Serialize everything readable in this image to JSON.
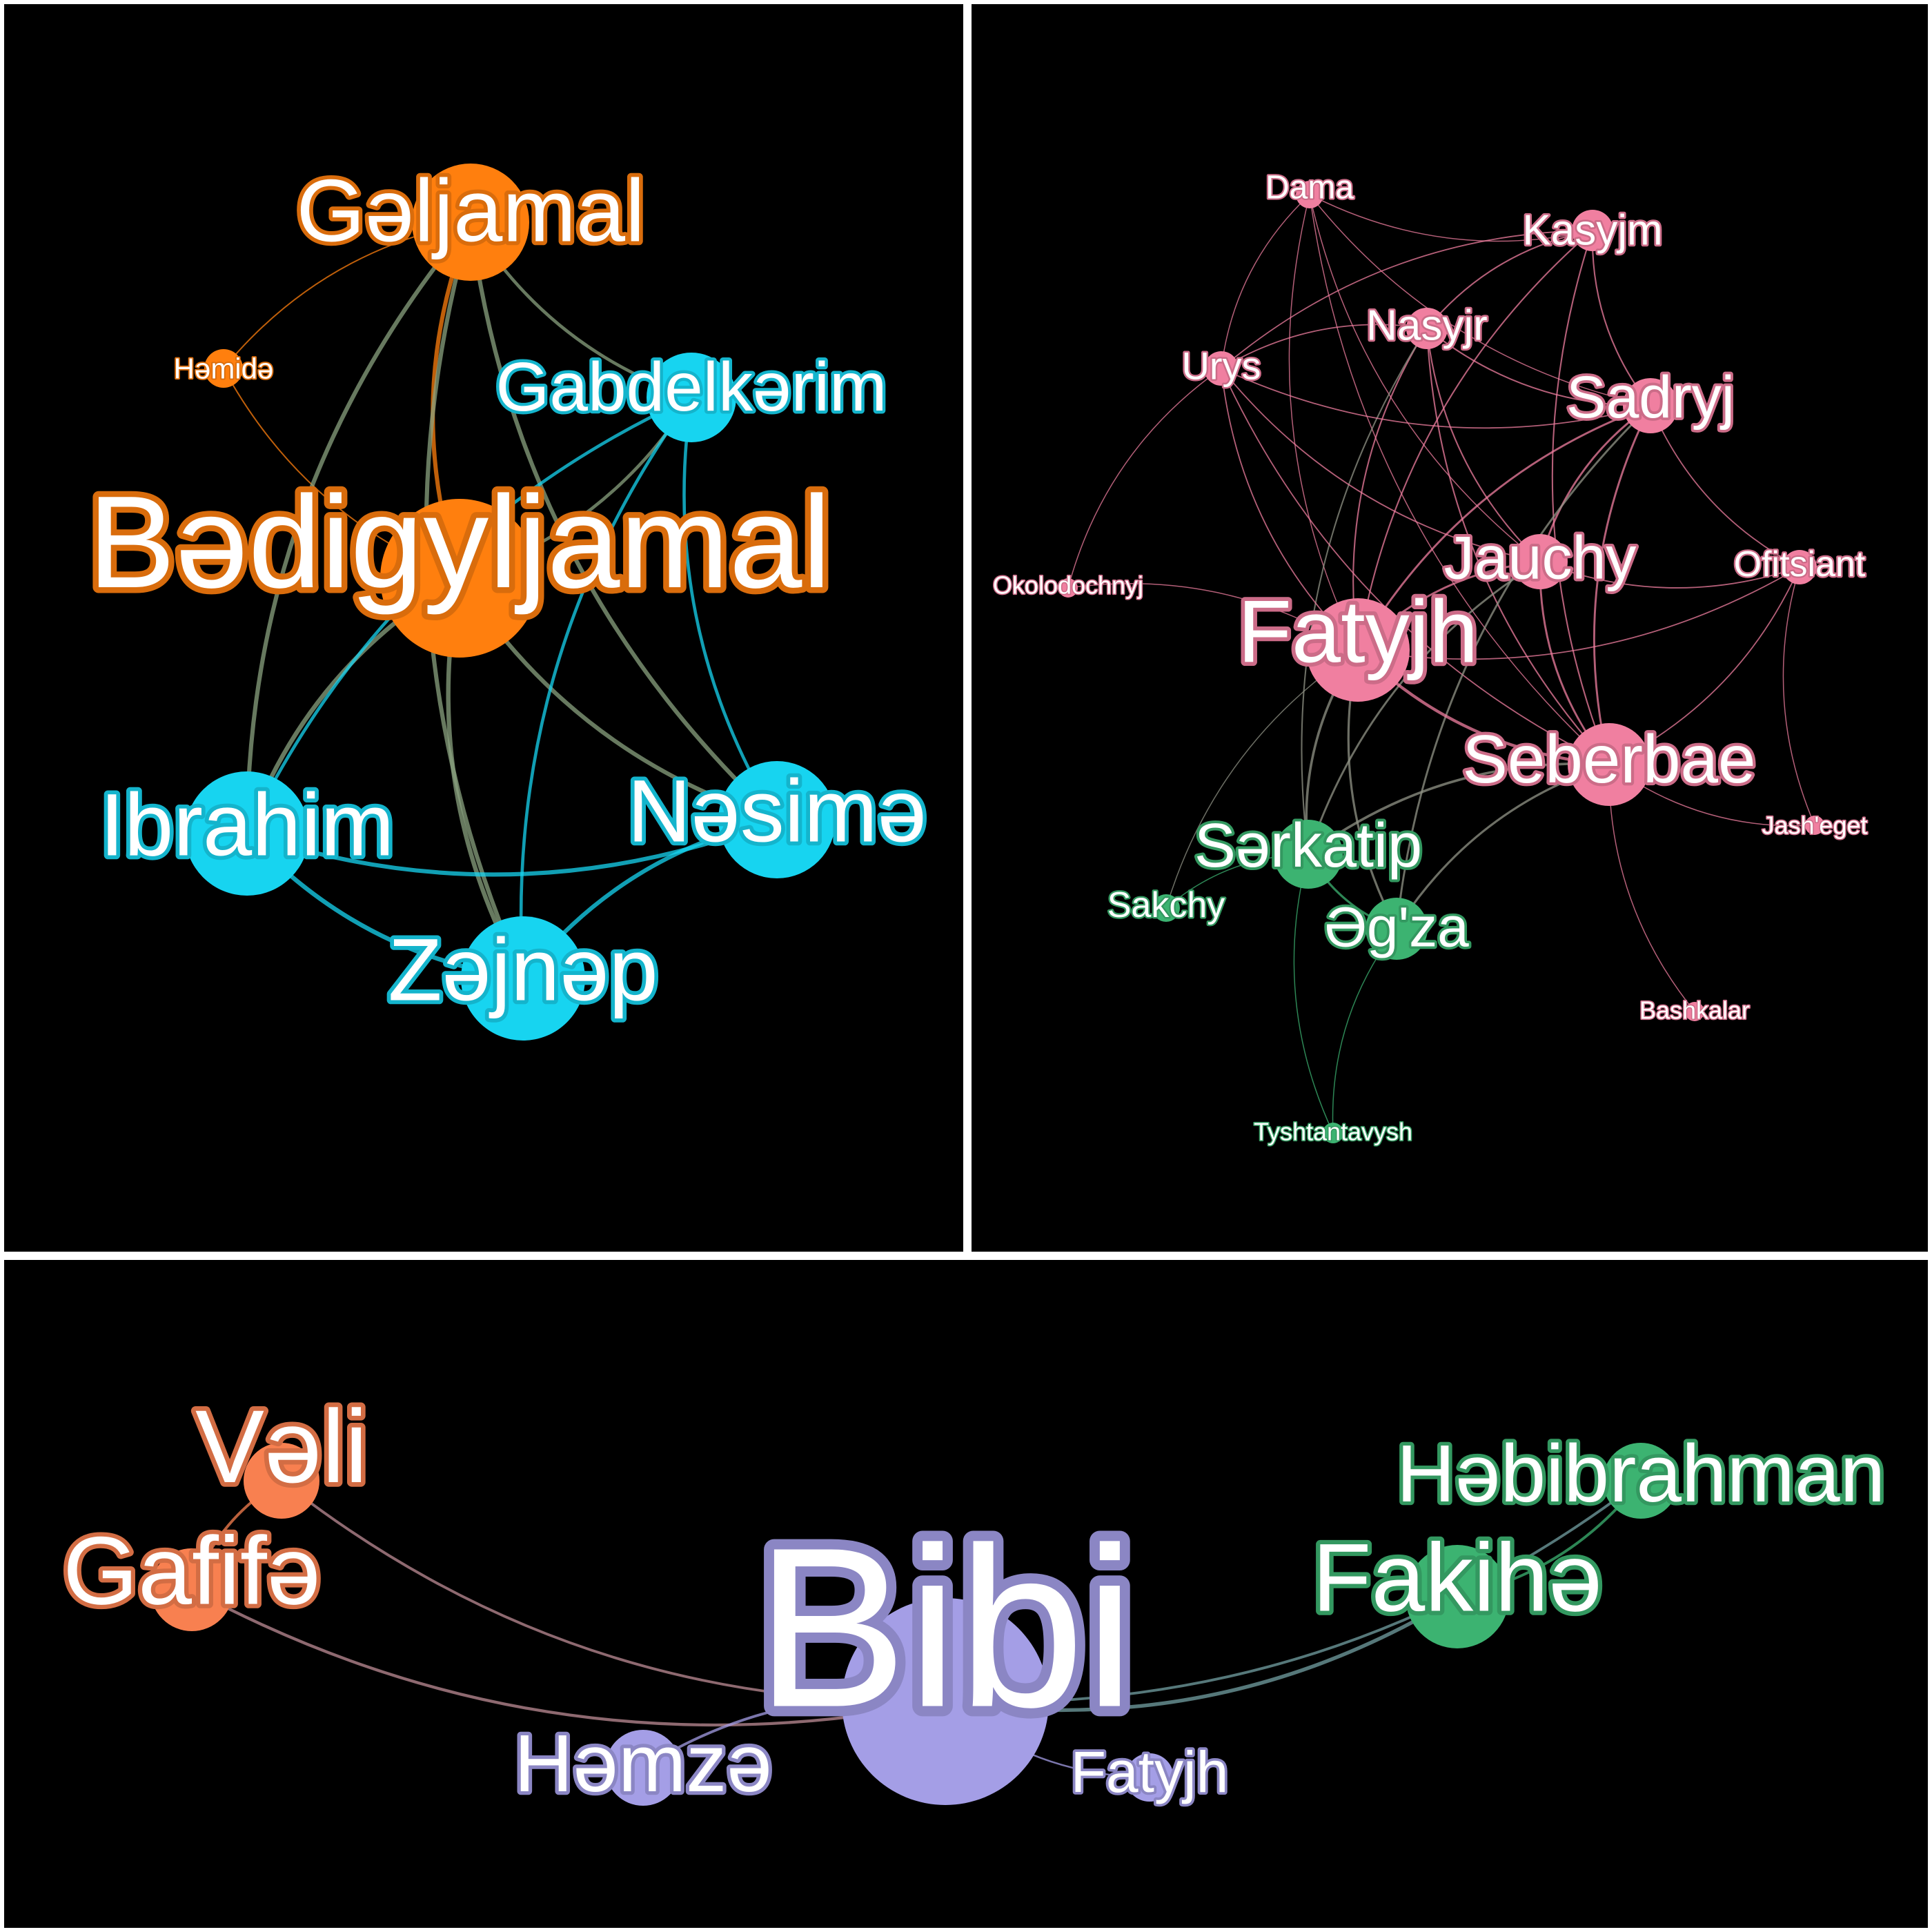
{
  "panels": [
    {
      "id": "a",
      "nodes": [
        {
          "key": "geljamal",
          "label": "Gəljamal",
          "color": "#ff7f0e"
        },
        {
          "key": "hemide",
          "label": "Həmidə",
          "color": "#ff7f0e"
        },
        {
          "key": "gabdelkerim",
          "label": "Gabdelkərim",
          "color": "#17d4f0"
        },
        {
          "key": "bedigyljamal",
          "label": "Bədigyljamal",
          "color": "#ff7f0e"
        },
        {
          "key": "ibrahim",
          "label": "Ibrahim",
          "color": "#17d4f0"
        },
        {
          "key": "nesime",
          "label": "Nəsimə",
          "color": "#17d4f0"
        },
        {
          "key": "zejnep",
          "label": "Zəjnəp",
          "color": "#17d4f0"
        }
      ],
      "edges": [
        [
          "geljamal",
          "bedigyljamal"
        ],
        [
          "geljamal",
          "hemide"
        ],
        [
          "hemide",
          "bedigyljamal"
        ],
        [
          "geljamal",
          "gabdelkerim"
        ],
        [
          "geljamal",
          "nesime"
        ],
        [
          "geljamal",
          "zejnep"
        ],
        [
          "geljamal",
          "ibrahim"
        ],
        [
          "bedigyljamal",
          "zejnep"
        ],
        [
          "bedigyljamal",
          "ibrahim"
        ],
        [
          "bedigyljamal",
          "nesime"
        ],
        [
          "bedigyljamal",
          "gabdelkerim"
        ],
        [
          "gabdelkerim",
          "ibrahim"
        ],
        [
          "gabdelkerim",
          "nesime"
        ],
        [
          "gabdelkerim",
          "zejnep"
        ],
        [
          "ibrahim",
          "nesime"
        ],
        [
          "ibrahim",
          "zejnep"
        ],
        [
          "nesime",
          "zejnep"
        ]
      ]
    },
    {
      "id": "b",
      "nodes": [
        {
          "key": "dama",
          "label": "Dama",
          "color": "#f07fa0"
        },
        {
          "key": "kasyjm",
          "label": "Kasyjm",
          "color": "#f07fa0"
        },
        {
          "key": "nasyjr",
          "label": "Nasyjr",
          "color": "#f07fa0"
        },
        {
          "key": "urys",
          "label": "Urys",
          "color": "#f07fa0"
        },
        {
          "key": "sadryj",
          "label": "Sadryj",
          "color": "#f07fa0"
        },
        {
          "key": "okolodochnyj",
          "label": "Okolodochnyj",
          "color": "#f07fa0"
        },
        {
          "key": "jauchy",
          "label": "Jauchy",
          "color": "#f07fa0"
        },
        {
          "key": "ofitsiant",
          "label": "Ofitsiant",
          "color": "#f07fa0"
        },
        {
          "key": "fatyjh",
          "label": "Fatyjh",
          "color": "#f07fa0"
        },
        {
          "key": "seberbae",
          "label": "Seberbae",
          "color": "#f07fa0"
        },
        {
          "key": "jasheget",
          "label": "Jash'eget",
          "color": "#f07fa0"
        },
        {
          "key": "serkatip",
          "label": "Sərkatip",
          "color": "#3cb371"
        },
        {
          "key": "sakchy",
          "label": "Sakchy",
          "color": "#3cb371"
        },
        {
          "key": "egza",
          "label": "Əg'za",
          "color": "#3cb371"
        },
        {
          "key": "bashkalar",
          "label": "Bashkalar",
          "color": "#f07fa0"
        },
        {
          "key": "tyshtantavysh",
          "label": "Tyshtantavysh",
          "color": "#3cb371"
        }
      ],
      "edges": [
        [
          "dama",
          "kasyjm"
        ],
        [
          "dama",
          "sadryj"
        ],
        [
          "dama",
          "fatyjh"
        ],
        [
          "dama",
          "jauchy"
        ],
        [
          "dama",
          "seberbae"
        ],
        [
          "dama",
          "urys"
        ],
        [
          "kasyjm",
          "fatyjh"
        ],
        [
          "kasyjm",
          "sadryj"
        ],
        [
          "kasyjm",
          "seberbae"
        ],
        [
          "kasyjm",
          "nasyjr"
        ],
        [
          "kasyjm",
          "urys"
        ],
        [
          "nasyjr",
          "fatyjh"
        ],
        [
          "nasyjr",
          "sadryj"
        ],
        [
          "nasyjr",
          "seberbae"
        ],
        [
          "nasyjr",
          "jauchy"
        ],
        [
          "nasyjr",
          "urys"
        ],
        [
          "nasyjr",
          "serkatip"
        ],
        [
          "urys",
          "fatyjh"
        ],
        [
          "urys",
          "okolodochnyj"
        ],
        [
          "urys",
          "seberbae"
        ],
        [
          "urys",
          "sadryj"
        ],
        [
          "urys",
          "jauchy"
        ],
        [
          "sadryj",
          "fatyjh"
        ],
        [
          "sadryj",
          "seberbae"
        ],
        [
          "sadryj",
          "jauchy"
        ],
        [
          "sadryj",
          "ofitsiant"
        ],
        [
          "sadryj",
          "egza"
        ],
        [
          "jauchy",
          "fatyjh"
        ],
        [
          "jauchy",
          "seberbae"
        ],
        [
          "jauchy",
          "serkatip"
        ],
        [
          "jauchy",
          "ofitsiant"
        ],
        [
          "fatyjh",
          "seberbae"
        ],
        [
          "fatyjh",
          "serkatip"
        ],
        [
          "fatyjh",
          "egza"
        ],
        [
          "fatyjh",
          "sakchy"
        ],
        [
          "fatyjh",
          "okolodochnyj"
        ],
        [
          "fatyjh",
          "ofitsiant"
        ],
        [
          "seberbae",
          "jasheget"
        ],
        [
          "seberbae",
          "egza"
        ],
        [
          "seberbae",
          "serkatip"
        ],
        [
          "seberbae",
          "bashkalar"
        ],
        [
          "seberbae",
          "ofitsiant"
        ],
        [
          "serkatip",
          "egza"
        ],
        [
          "serkatip",
          "sakchy"
        ],
        [
          "egza",
          "tyshtantavysh"
        ],
        [
          "serkatip",
          "tyshtantavysh"
        ],
        [
          "ofitsiant",
          "jasheget"
        ]
      ]
    },
    {
      "id": "c",
      "nodes": [
        {
          "key": "veli",
          "label": "Vəli",
          "color": "#f88050"
        },
        {
          "key": "gafife",
          "label": "Gafifə",
          "color": "#f88050"
        },
        {
          "key": "bibi",
          "label": "Bibi",
          "color": "#a49ee6"
        },
        {
          "key": "hebibrahman",
          "label": "Həbibrahman",
          "color": "#3cb371"
        },
        {
          "key": "fakihe",
          "label": "Fakihə",
          "color": "#3cb371"
        },
        {
          "key": "hemze",
          "label": "Həmzə",
          "color": "#a49ee6"
        },
        {
          "key": "fatyjh",
          "label": "Fatyjh",
          "color": "#a49ee6"
        }
      ],
      "edges": [
        [
          "veli",
          "gafife"
        ],
        [
          "veli",
          "bibi"
        ],
        [
          "gafife",
          "bibi"
        ],
        [
          "bibi",
          "hemze"
        ],
        [
          "bibi",
          "fatyjh"
        ],
        [
          "bibi",
          "fakihe"
        ],
        [
          "bibi",
          "hebibrahman"
        ],
        [
          "fakihe",
          "hebibrahman"
        ]
      ]
    }
  ]
}
